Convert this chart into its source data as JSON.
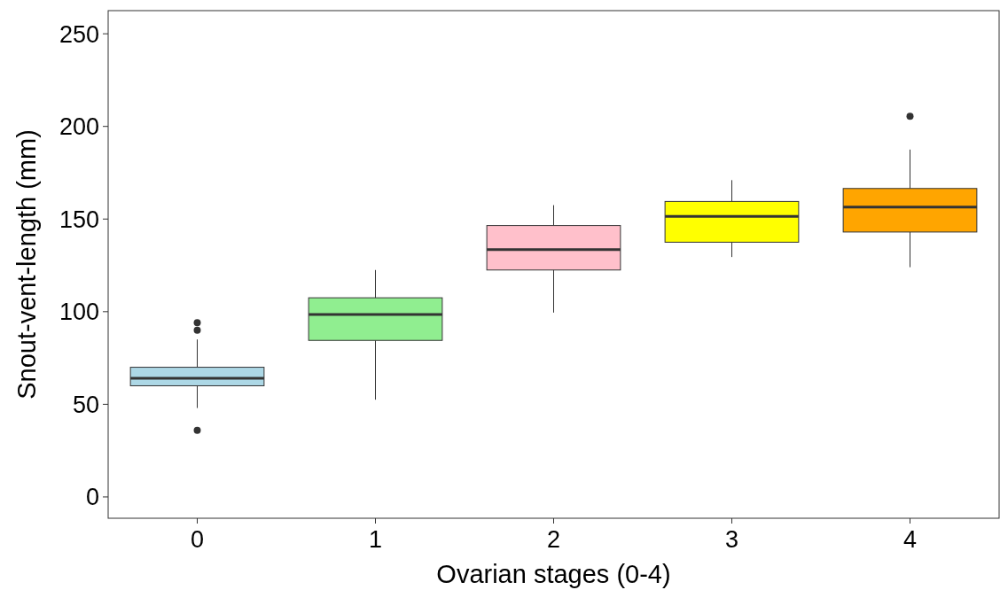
{
  "chart_data": {
    "type": "box",
    "xlabel": "Ovarian stages (0-4)",
    "ylabel": "Snout-vent-length (mm)",
    "categories": [
      "0",
      "1",
      "2",
      "3",
      "4"
    ],
    "colors": [
      "#add8e6",
      "#90ee90",
      "#ffc0cb",
      "#ffff00",
      "#ffa500"
    ],
    "boxes": [
      {
        "low": 48,
        "q1": 60,
        "median": 64,
        "q3": 70,
        "high": 85,
        "outliers": [
          94,
          90,
          36
        ]
      },
      {
        "low": 52.5,
        "q1": 84.5,
        "median": 98.5,
        "q3": 107.5,
        "high": 122.5
      },
      {
        "low": 99.5,
        "q1": 122.5,
        "median": 133.5,
        "q3": 146.5,
        "high": 157.5
      },
      {
        "low": 129.5,
        "q1": 137.5,
        "median": 151.5,
        "q3": 159.5,
        "high": 171
      },
      {
        "low": 124,
        "q1": 143,
        "median": 156.5,
        "q3": 166.5,
        "high": 187.5,
        "outliers": [
          205.5
        ]
      }
    ],
    "ylim": [
      -11.5,
      262.5
    ],
    "yticks": [
      0,
      50,
      100,
      150,
      200,
      250
    ],
    "grid": false
  }
}
